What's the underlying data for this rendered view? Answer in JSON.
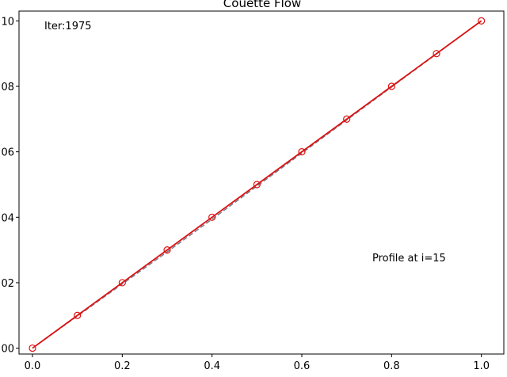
{
  "chart_data": {
    "type": "line",
    "title": "Couette Flow",
    "xlabel": "",
    "ylabel": "",
    "xlim": [
      -0.03,
      1.05
    ],
    "ylim": [
      -0.018,
      1.03
    ],
    "x_ticks": [
      0.0,
      0.2,
      0.4,
      0.6,
      0.8,
      1.0
    ],
    "x_tick_labels": [
      "0.0",
      "0.2",
      "0.4",
      "0.6",
      "0.8",
      "1.0"
    ],
    "y_ticks": [
      0.0,
      0.2,
      0.4,
      0.6,
      0.8,
      1.0
    ],
    "y_tick_labels": [
      "00",
      "02",
      "04",
      "06",
      "08",
      "10"
    ],
    "grid": false,
    "series": [
      {
        "style": "dashed",
        "color": "#708090",
        "x": [
          0.0,
          0.1,
          0.2,
          0.3,
          0.4,
          0.5,
          0.6,
          0.7,
          0.8,
          0.9,
          1.0
        ],
        "y": [
          0.0,
          0.098,
          0.196,
          0.294,
          0.394,
          0.495,
          0.596,
          0.697,
          0.798,
          0.899,
          1.0
        ]
      },
      {
        "style": "solid",
        "color": "#dd1111",
        "marker": "circle-open",
        "x": [
          0.0,
          0.1,
          0.2,
          0.3,
          0.4,
          0.5,
          0.6,
          0.7,
          0.8,
          0.9,
          1.0
        ],
        "y": [
          0.0,
          0.1,
          0.2,
          0.3,
          0.4,
          0.5,
          0.6,
          0.7,
          0.8,
          0.9,
          1.0
        ]
      }
    ],
    "annotations": [
      {
        "text": "Iter:1975",
        "x": 0.0,
        "y": 1.0
      },
      {
        "text": "Profile at i=15",
        "x": 0.75,
        "y": 0.25
      }
    ]
  }
}
